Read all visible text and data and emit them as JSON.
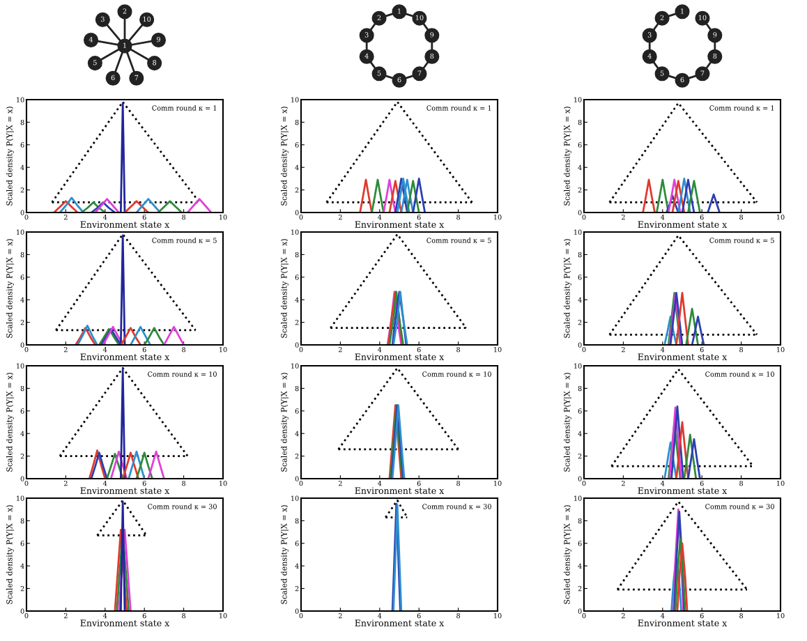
{
  "chart_data": [
    {
      "type": "other",
      "annotations": [
        "1",
        "2",
        "10",
        "9",
        "8",
        "7",
        "6",
        "5",
        "4",
        "3"
      ]
    },
    {
      "type": "other",
      "annotations": [
        "1",
        "10",
        "9",
        "8",
        "7",
        "6",
        "5",
        "4",
        "3",
        "2"
      ]
    },
    {
      "type": "other",
      "annotations": [
        "1",
        "10",
        "9",
        "8",
        "7",
        "6",
        "5",
        "4",
        "3",
        "2"
      ]
    },
    {
      "type": "line",
      "xlabel": "Environment state x",
      "ylabel": "Scaled density P(Y|X = x)",
      "annotations": [
        "Comm round κ = 1"
      ],
      "xlim": [
        0,
        10
      ],
      "ylim": [
        0,
        10
      ],
      "xticks": [
        0,
        2,
        4,
        6,
        8,
        10
      ],
      "yticks": [
        0,
        2,
        4,
        6,
        8,
        10
      ],
      "series": [
        {
          "color": "#000000",
          "line_style": "dotted",
          "x": [
            1.3,
            4.9,
            8.8
          ],
          "values": [
            0.9,
            9.8,
            0.9
          ]
        },
        {
          "color": "#000000",
          "line_style": "dotted",
          "x": [
            1.3,
            8.8
          ],
          "values": [
            0.9,
            0.9
          ]
        },
        {
          "color": "#e03a2e",
          "x": [
            1.4,
            1.7,
            2.0,
            2.3,
            2.6
          ],
          "values": [
            0,
            0.5,
            1.0,
            0.5,
            0
          ]
        },
        {
          "color": "#2e8fd0",
          "x": [
            1.7,
            2.0,
            2.3,
            2.6,
            2.9
          ],
          "values": [
            0,
            0.6,
            1.3,
            0.6,
            0
          ]
        },
        {
          "color": "#2e8b3a",
          "x": [
            2.8,
            3.1,
            3.4,
            3.7,
            4.0
          ],
          "values": [
            0,
            0.4,
            0.9,
            0.4,
            0
          ]
        },
        {
          "color": "#2c3fb0",
          "x": [
            3.3,
            3.6,
            3.9,
            4.2,
            4.5
          ],
          "values": [
            0,
            0.4,
            0.9,
            0.4,
            0
          ]
        },
        {
          "color": "#e040d8",
          "x": [
            3.5,
            3.8,
            4.1,
            4.4,
            4.7
          ],
          "values": [
            0,
            0.6,
            1.2,
            0.6,
            0
          ]
        },
        {
          "color": "#22259a",
          "x": [
            4.8,
            4.85,
            4.9,
            4.95,
            5.0
          ],
          "values": [
            0,
            4.8,
            9.7,
            4.8,
            0
          ]
        },
        {
          "color": "#e03a2e",
          "x": [
            5.0,
            5.3,
            5.6,
            5.9,
            6.2
          ],
          "values": [
            0,
            0.5,
            1.0,
            0.5,
            0
          ]
        },
        {
          "color": "#2e8fd0",
          "x": [
            5.6,
            5.9,
            6.2,
            6.5,
            6.8
          ],
          "values": [
            0,
            0.6,
            1.2,
            0.6,
            0
          ]
        },
        {
          "color": "#2e8b3a",
          "x": [
            6.7,
            7.0,
            7.3,
            7.6,
            7.9
          ],
          "values": [
            0,
            0.5,
            1.0,
            0.5,
            0
          ]
        },
        {
          "color": "#e040d8",
          "x": [
            8.2,
            8.5,
            8.8,
            9.1,
            9.4
          ],
          "values": [
            0,
            0.6,
            1.2,
            0.6,
            0
          ]
        }
      ]
    },
    {
      "type": "line",
      "xlabel": "Environment state x",
      "ylabel": "Scaled density P(Y|X = x)",
      "annotations": [
        "Comm round κ = 1"
      ],
      "xlim": [
        0,
        10
      ],
      "ylim": [
        0,
        10
      ],
      "xticks": [
        0,
        2,
        4,
        6,
        8,
        10
      ],
      "yticks": [
        0,
        2,
        4,
        6,
        8,
        10
      ],
      "series": [
        {
          "color": "#000000",
          "line_style": "dotted",
          "x": [
            1.3,
            4.9,
            8.7
          ],
          "values": [
            0.9,
            9.8,
            0.9
          ]
        },
        {
          "color": "#000000",
          "line_style": "dotted",
          "x": [
            1.3,
            8.7
          ],
          "values": [
            0.9,
            0.9
          ]
        },
        {
          "color": "#e03a2e",
          "x": [
            3.0,
            3.15,
            3.3,
            3.45,
            3.6
          ],
          "values": [
            0,
            1.4,
            2.9,
            1.4,
            0
          ]
        },
        {
          "color": "#2e8b3a",
          "x": [
            3.6,
            3.75,
            3.9,
            4.05,
            4.2
          ],
          "values": [
            0,
            1.4,
            2.9,
            1.4,
            0
          ]
        },
        {
          "color": "#e040d8",
          "x": [
            4.2,
            4.35,
            4.5,
            4.65,
            4.8
          ],
          "values": [
            0,
            1.4,
            2.9,
            1.4,
            0
          ]
        },
        {
          "color": "#e03a2e",
          "x": [
            4.5,
            4.65,
            4.8,
            4.95,
            5.1
          ],
          "values": [
            0,
            1.4,
            2.8,
            1.4,
            0
          ]
        },
        {
          "color": "#2c3fb0",
          "x": [
            4.8,
            4.95,
            5.1,
            5.25,
            5.4
          ],
          "values": [
            0,
            1.5,
            3.0,
            1.5,
            0
          ]
        },
        {
          "color": "#2e8fd0",
          "x": [
            4.9,
            5.05,
            5.2,
            5.35,
            5.5
          ],
          "values": [
            0,
            1.5,
            3.0,
            1.5,
            0
          ]
        },
        {
          "color": "#2e8fd0",
          "x": [
            5.1,
            5.25,
            5.4,
            5.55,
            5.7
          ],
          "values": [
            0,
            1.4,
            2.9,
            1.4,
            0
          ]
        },
        {
          "color": "#2e8b3a",
          "x": [
            5.4,
            5.55,
            5.7,
            5.85,
            6.0
          ],
          "values": [
            0,
            1.4,
            2.8,
            1.4,
            0
          ]
        },
        {
          "color": "#2c3fb0",
          "x": [
            5.7,
            5.85,
            6.0,
            6.15,
            6.3
          ],
          "values": [
            0,
            1.5,
            3.0,
            1.5,
            0
          ]
        }
      ]
    },
    {
      "type": "line",
      "xlabel": "Environment state x",
      "ylabel": "Scaled density P(Y|X = x)",
      "annotations": [
        "Comm round κ = 1"
      ],
      "xlim": [
        0,
        10
      ],
      "ylim": [
        0,
        10
      ],
      "xticks": [
        0,
        2,
        4,
        6,
        8,
        10
      ],
      "yticks": [
        0,
        2,
        4,
        6,
        8,
        10
      ],
      "series": [
        {
          "color": "#000000",
          "line_style": "dotted",
          "x": [
            1.3,
            4.8,
            8.8
          ],
          "values": [
            0.9,
            9.7,
            0.9
          ]
        },
        {
          "color": "#000000",
          "line_style": "dotted",
          "x": [
            1.3,
            8.8
          ],
          "values": [
            0.9,
            0.9
          ]
        },
        {
          "color": "#e03a2e",
          "x": [
            3.0,
            3.15,
            3.3,
            3.45,
            3.6
          ],
          "values": [
            0,
            1.4,
            2.9,
            1.4,
            0
          ]
        },
        {
          "color": "#2e8b3a",
          "x": [
            3.7,
            3.85,
            4.0,
            4.15,
            4.3
          ],
          "values": [
            0,
            1.4,
            2.9,
            1.4,
            0
          ]
        },
        {
          "color": "#2c3fb0",
          "x": [
            4.2,
            4.35,
            4.5,
            4.65,
            4.8
          ],
          "values": [
            0,
            0.7,
            1.5,
            0.7,
            0
          ]
        },
        {
          "color": "#e040d8",
          "x": [
            4.3,
            4.45,
            4.6,
            4.75,
            4.9
          ],
          "values": [
            0,
            1.4,
            2.9,
            1.4,
            0
          ]
        },
        {
          "color": "#e03a2e",
          "x": [
            4.5,
            4.65,
            4.8,
            4.95,
            5.1
          ],
          "values": [
            0,
            1.4,
            2.8,
            1.4,
            0
          ]
        },
        {
          "color": "#2e8fd0",
          "x": [
            4.8,
            4.95,
            5.1,
            5.25,
            5.4
          ],
          "values": [
            0,
            1.5,
            3.0,
            1.5,
            0
          ]
        },
        {
          "color": "#2c3fb0",
          "x": [
            5.0,
            5.15,
            5.3,
            5.45,
            5.6
          ],
          "values": [
            0,
            1.4,
            2.9,
            1.4,
            0
          ]
        },
        {
          "color": "#2e8b3a",
          "x": [
            5.3,
            5.45,
            5.6,
            5.75,
            5.9
          ],
          "values": [
            0,
            1.4,
            2.8,
            1.4,
            0
          ]
        },
        {
          "color": "#2c3fb0",
          "x": [
            6.3,
            6.45,
            6.6,
            6.75,
            6.9
          ],
          "values": [
            0,
            0.8,
            1.6,
            0.8,
            0
          ]
        }
      ]
    },
    {
      "type": "line",
      "xlabel": "Environment state x",
      "ylabel": "Scaled density P(Y|X = x)",
      "annotations": [
        "Comm round κ = 5"
      ],
      "xlim": [
        0,
        10
      ],
      "ylim": [
        0,
        10
      ],
      "xticks": [
        0,
        2,
        4,
        6,
        8,
        10
      ],
      "yticks": [
        0,
        2,
        4,
        6,
        8,
        10
      ],
      "series": [
        {
          "color": "#000000",
          "line_style": "dotted",
          "x": [
            1.5,
            4.9,
            8.6
          ],
          "values": [
            1.3,
            9.8,
            1.3
          ]
        },
        {
          "color": "#000000",
          "line_style": "dotted",
          "x": [
            1.5,
            8.6
          ],
          "values": [
            1.3,
            1.3
          ]
        },
        {
          "color": "#e03a2e",
          "x": [
            2.5,
            2.75,
            3.0,
            3.25,
            3.5
          ],
          "values": [
            0,
            0.7,
            1.5,
            0.7,
            0
          ]
        },
        {
          "color": "#2e8fd0",
          "x": [
            2.6,
            2.85,
            3.1,
            3.35,
            3.6
          ],
          "values": [
            0,
            0.8,
            1.7,
            0.8,
            0
          ]
        },
        {
          "color": "#2e8b3a",
          "x": [
            3.7,
            3.95,
            4.2,
            4.45,
            4.7
          ],
          "values": [
            0,
            0.7,
            1.4,
            0.7,
            0
          ]
        },
        {
          "color": "#2c3fb0",
          "x": [
            3.8,
            4.05,
            4.3,
            4.55,
            4.8
          ],
          "values": [
            0,
            0.7,
            1.4,
            0.7,
            0
          ]
        },
        {
          "color": "#e040d8",
          "x": [
            3.9,
            4.15,
            4.4,
            4.65,
            4.9
          ],
          "values": [
            0,
            0.8,
            1.6,
            0.8,
            0
          ]
        },
        {
          "color": "#22259a",
          "x": [
            4.8,
            4.85,
            4.9,
            4.95,
            5.0
          ],
          "values": [
            0,
            4.8,
            9.7,
            4.8,
            0
          ]
        },
        {
          "color": "#e03a2e",
          "x": [
            4.8,
            5.05,
            5.3,
            5.55,
            5.8
          ],
          "values": [
            0,
            0.7,
            1.5,
            0.7,
            0
          ]
        },
        {
          "color": "#2e8fd0",
          "x": [
            5.3,
            5.55,
            5.8,
            6.05,
            6.3
          ],
          "values": [
            0,
            0.8,
            1.6,
            0.8,
            0
          ]
        },
        {
          "color": "#2e8b3a",
          "x": [
            6.0,
            6.25,
            6.5,
            6.75,
            7.0
          ],
          "values": [
            0,
            0.7,
            1.5,
            0.7,
            0
          ]
        },
        {
          "color": "#e040d8",
          "x": [
            7.0,
            7.25,
            7.5,
            7.75,
            8.0
          ],
          "values": [
            0,
            0.8,
            1.6,
            0.8,
            0
          ]
        }
      ]
    },
    {
      "type": "line",
      "xlabel": "Environment state x",
      "ylabel": "Scaled density P(Y|X = x)",
      "annotations": [
        "Comm round κ = 5"
      ],
      "xlim": [
        0,
        10
      ],
      "ylim": [
        0,
        10
      ],
      "xticks": [
        0,
        2,
        4,
        6,
        8,
        10
      ],
      "yticks": [
        0,
        2,
        4,
        6,
        8,
        10
      ],
      "series": [
        {
          "color": "#000000",
          "line_style": "dotted",
          "x": [
            1.5,
            4.9,
            8.4
          ],
          "values": [
            1.5,
            9.8,
            1.5
          ]
        },
        {
          "color": "#000000",
          "line_style": "dotted",
          "x": [
            1.5,
            8.4
          ],
          "values": [
            1.5,
            1.5
          ]
        },
        {
          "color": "#e040d8",
          "x": [
            4.4,
            4.6,
            4.75,
            4.9,
            5.1
          ],
          "values": [
            0,
            2.3,
            4.7,
            2.3,
            0
          ]
        },
        {
          "color": "#e03a2e",
          "x": [
            4.45,
            4.6,
            4.8,
            5.0,
            5.15
          ],
          "values": [
            0,
            2.3,
            4.7,
            2.3,
            0
          ]
        },
        {
          "color": "#2e8b3a",
          "x": [
            4.5,
            4.7,
            4.85,
            5.0,
            5.2
          ],
          "values": [
            0,
            2.3,
            4.7,
            2.3,
            0
          ]
        },
        {
          "color": "#2c3fb0",
          "x": [
            4.65,
            4.8,
            5.0,
            5.2,
            5.35
          ],
          "values": [
            0,
            2.3,
            4.7,
            2.3,
            0
          ]
        },
        {
          "color": "#2e8fd0",
          "x": [
            4.7,
            4.9,
            5.05,
            5.2,
            5.4
          ],
          "values": [
            0,
            2.3,
            4.7,
            2.3,
            0
          ]
        }
      ]
    },
    {
      "type": "line",
      "xlabel": "Environment state x",
      "ylabel": "Scaled density P(Y|X = x)",
      "annotations": [
        "Comm round κ = 5"
      ],
      "xlim": [
        0,
        10
      ],
      "ylim": [
        0,
        10
      ],
      "xticks": [
        0,
        2,
        4,
        6,
        8,
        10
      ],
      "yticks": [
        0,
        2,
        4,
        6,
        8,
        10
      ],
      "series": [
        {
          "color": "#000000",
          "line_style": "dotted",
          "x": [
            1.3,
            4.8,
            8.8
          ],
          "values": [
            0.9,
            9.7,
            0.9
          ]
        },
        {
          "color": "#000000",
          "line_style": "dotted",
          "x": [
            1.3,
            8.8
          ],
          "values": [
            0.9,
            0.9
          ]
        },
        {
          "color": "#2e8fd0",
          "x": [
            4.1,
            4.25,
            4.4,
            4.55,
            4.7
          ],
          "values": [
            0,
            1.2,
            2.5,
            1.2,
            0
          ]
        },
        {
          "color": "#2e8b3a",
          "x": [
            4.3,
            4.45,
            4.6,
            4.75,
            4.9
          ],
          "values": [
            0,
            2.3,
            4.6,
            2.3,
            0
          ]
        },
        {
          "color": "#e040d8",
          "x": [
            4.35,
            4.5,
            4.65,
            4.8,
            4.95
          ],
          "values": [
            0,
            2.2,
            4.5,
            2.2,
            0
          ]
        },
        {
          "color": "#2c3fb0",
          "x": [
            4.4,
            4.55,
            4.7,
            4.85,
            5.0
          ],
          "values": [
            0,
            2.3,
            4.6,
            2.3,
            0
          ]
        },
        {
          "color": "#e03a2e",
          "x": [
            4.7,
            4.85,
            5.0,
            5.15,
            5.3
          ],
          "values": [
            0,
            2.3,
            4.6,
            2.3,
            0
          ]
        },
        {
          "color": "#2e8b3a",
          "x": [
            5.2,
            5.35,
            5.5,
            5.65,
            5.8
          ],
          "values": [
            0,
            1.6,
            3.2,
            1.6,
            0
          ]
        },
        {
          "color": "#2c3fb0",
          "x": [
            5.5,
            5.65,
            5.8,
            5.95,
            6.1
          ],
          "values": [
            0,
            1.2,
            2.5,
            1.2,
            0
          ]
        }
      ]
    },
    {
      "type": "line",
      "xlabel": "Environment state x",
      "ylabel": "Scaled density P(Y|X = x)",
      "annotations": [
        "Comm round κ = 10"
      ],
      "xlim": [
        0,
        10
      ],
      "ylim": [
        0,
        10
      ],
      "xticks": [
        0,
        2,
        4,
        6,
        8,
        10
      ],
      "yticks": [
        0,
        2,
        4,
        6,
        8,
        10
      ],
      "series": [
        {
          "color": "#000000",
          "line_style": "dotted",
          "x": [
            1.7,
            4.9,
            8.2
          ],
          "values": [
            2.0,
            9.8,
            2.0
          ]
        },
        {
          "color": "#000000",
          "line_style": "dotted",
          "x": [
            1.7,
            8.2
          ],
          "values": [
            2.0,
            2.0
          ]
        },
        {
          "color": "#e03a2e",
          "x": [
            3.2,
            3.4,
            3.6,
            3.8,
            4.0
          ],
          "values": [
            0,
            1.2,
            2.5,
            1.2,
            0
          ]
        },
        {
          "color": "#2c3fb0",
          "x": [
            3.3,
            3.5,
            3.7,
            3.9,
            4.1
          ],
          "values": [
            0,
            1.1,
            2.3,
            1.1,
            0
          ]
        },
        {
          "color": "#2e8b3a",
          "x": [
            4.1,
            4.3,
            4.5,
            4.7,
            4.9
          ],
          "values": [
            0,
            1.1,
            2.2,
            1.1,
            0
          ]
        },
        {
          "color": "#e040d8",
          "x": [
            4.3,
            4.5,
            4.7,
            4.9,
            5.1
          ],
          "values": [
            0,
            1.2,
            2.4,
            1.2,
            0
          ]
        },
        {
          "color": "#22259a",
          "x": [
            4.8,
            4.85,
            4.9,
            4.95,
            5.0
          ],
          "values": [
            0,
            4.8,
            9.7,
            4.8,
            0
          ]
        },
        {
          "color": "#e03a2e",
          "x": [
            4.9,
            5.1,
            5.3,
            5.5,
            5.7
          ],
          "values": [
            0,
            1.1,
            2.3,
            1.1,
            0
          ]
        },
        {
          "color": "#2e8fd0",
          "x": [
            5.2,
            5.4,
            5.6,
            5.8,
            6.0
          ],
          "values": [
            0,
            1.2,
            2.4,
            1.2,
            0
          ]
        },
        {
          "color": "#2e8b3a",
          "x": [
            5.6,
            5.8,
            6.0,
            6.2,
            6.4
          ],
          "values": [
            0,
            1.1,
            2.3,
            1.1,
            0
          ]
        },
        {
          "color": "#e040d8",
          "x": [
            6.2,
            6.4,
            6.6,
            6.8,
            7.0
          ],
          "values": [
            0,
            1.2,
            2.4,
            1.2,
            0
          ]
        }
      ]
    },
    {
      "type": "line",
      "xlabel": "Environment state x",
      "ylabel": "Scaled density P(Y|X = x)",
      "annotations": [
        "Comm round κ = 10"
      ],
      "xlim": [
        0,
        10
      ],
      "ylim": [
        0,
        10
      ],
      "xticks": [
        0,
        2,
        4,
        6,
        8,
        10
      ],
      "yticks": [
        0,
        2,
        4,
        6,
        8,
        10
      ],
      "series": [
        {
          "color": "#000000",
          "line_style": "dotted",
          "x": [
            1.9,
            4.9,
            8.0
          ],
          "values": [
            2.6,
            9.8,
            2.6
          ]
        },
        {
          "color": "#000000",
          "line_style": "dotted",
          "x": [
            1.9,
            8.0
          ],
          "values": [
            2.6,
            2.6
          ]
        },
        {
          "color": "#e03a2e",
          "x": [
            4.5,
            4.65,
            4.8,
            4.95,
            5.1
          ],
          "values": [
            0,
            3.2,
            6.5,
            3.2,
            0
          ]
        },
        {
          "color": "#2e8b3a",
          "x": [
            4.55,
            4.7,
            4.85,
            5.0,
            5.15
          ],
          "values": [
            0,
            3.2,
            6.5,
            3.2,
            0
          ]
        },
        {
          "color": "#2c3fb0",
          "x": [
            4.6,
            4.75,
            4.9,
            5.05,
            5.2
          ],
          "values": [
            0,
            3.2,
            6.5,
            3.2,
            0
          ]
        },
        {
          "color": "#2e8fd0",
          "x": [
            4.65,
            4.8,
            4.95,
            5.1,
            5.25
          ],
          "values": [
            0,
            3.2,
            6.5,
            3.2,
            0
          ]
        }
      ]
    },
    {
      "type": "line",
      "xlabel": "Environment state x",
      "ylabel": "Scaled density P(Y|X = x)",
      "annotations": [
        "Comm round κ = 10"
      ],
      "xlim": [
        0,
        10
      ],
      "ylim": [
        0,
        10
      ],
      "xticks": [
        0,
        2,
        4,
        6,
        8,
        10
      ],
      "yticks": [
        0,
        2,
        4,
        6,
        8,
        10
      ],
      "series": [
        {
          "color": "#000000",
          "line_style": "dotted",
          "x": [
            1.4,
            4.8,
            8.6
          ],
          "values": [
            1.1,
            9.7,
            1.1
          ]
        },
        {
          "color": "#000000",
          "line_style": "dotted",
          "x": [
            1.4,
            8.6
          ],
          "values": [
            1.1,
            1.1
          ]
        },
        {
          "color": "#2e8fd0",
          "x": [
            4.1,
            4.25,
            4.4,
            4.55,
            4.7
          ],
          "values": [
            0,
            1.6,
            3.2,
            1.6,
            0
          ]
        },
        {
          "color": "#2e8b3a",
          "x": [
            4.3,
            4.45,
            4.6,
            4.75,
            4.9
          ],
          "values": [
            0,
            2.4,
            4.9,
            2.4,
            0
          ]
        },
        {
          "color": "#e040d8",
          "x": [
            4.35,
            4.5,
            4.65,
            4.8,
            4.95
          ],
          "values": [
            0,
            3.1,
            6.3,
            3.1,
            0
          ]
        },
        {
          "color": "#2c3fb0",
          "x": [
            4.45,
            4.6,
            4.75,
            4.9,
            5.05
          ],
          "values": [
            0,
            3.2,
            6.4,
            3.2,
            0
          ]
        },
        {
          "color": "#e03a2e",
          "x": [
            4.7,
            4.85,
            5.0,
            5.15,
            5.3
          ],
          "values": [
            0,
            2.5,
            5.0,
            2.5,
            0
          ]
        },
        {
          "color": "#2e8b3a",
          "x": [
            5.1,
            5.25,
            5.4,
            5.55,
            5.7
          ],
          "values": [
            0,
            1.9,
            3.9,
            1.9,
            0
          ]
        },
        {
          "color": "#2c3fb0",
          "x": [
            5.3,
            5.45,
            5.6,
            5.75,
            5.9
          ],
          "values": [
            0,
            1.7,
            3.5,
            1.7,
            0
          ]
        }
      ]
    },
    {
      "type": "line",
      "xlabel": "Environment state x",
      "ylabel": "Scaled density P(Y|X = x)",
      "annotations": [
        "Comm round κ = 30"
      ],
      "xlim": [
        0,
        10
      ],
      "ylim": [
        0,
        10
      ],
      "xticks": [
        0,
        2,
        4,
        6,
        8,
        10
      ],
      "yticks": [
        0,
        2,
        4,
        6,
        8,
        10
      ],
      "series": [
        {
          "color": "#000000",
          "line_style": "dotted",
          "x": [
            3.6,
            4.9,
            6.1
          ],
          "values": [
            6.7,
            9.8,
            6.7
          ]
        },
        {
          "color": "#000000",
          "line_style": "dotted",
          "x": [
            3.6,
            6.1
          ],
          "values": [
            6.7,
            6.7
          ]
        },
        {
          "color": "#e03a2e",
          "x": [
            4.5,
            4.65,
            4.8,
            4.95,
            5.1
          ],
          "values": [
            0,
            3.6,
            7.2,
            3.6,
            0
          ]
        },
        {
          "color": "#2e8b3a",
          "x": [
            4.6,
            4.75,
            4.9,
            5.05,
            5.2
          ],
          "values": [
            0,
            3.6,
            7.2,
            3.6,
            0
          ]
        },
        {
          "color": "#e040d8",
          "x": [
            4.7,
            4.85,
            5.0,
            5.15,
            5.3
          ],
          "values": [
            0,
            3.6,
            7.2,
            3.6,
            0
          ]
        },
        {
          "color": "#22259a",
          "x": [
            4.8,
            4.85,
            4.9,
            4.95,
            5.0
          ],
          "values": [
            0,
            4.8,
            9.7,
            4.8,
            0
          ]
        }
      ]
    },
    {
      "type": "line",
      "xlabel": "Environment state x",
      "ylabel": "Scaled density P(Y|X = x)",
      "annotations": [
        "Comm round κ = 30"
      ],
      "xlim": [
        0,
        10
      ],
      "ylim": [
        0,
        10
      ],
      "xticks": [
        0,
        2,
        4,
        6,
        8,
        10
      ],
      "yticks": [
        0,
        2,
        4,
        6,
        8,
        10
      ],
      "series": [
        {
          "color": "#000000",
          "line_style": "dotted",
          "x": [
            4.3,
            4.9,
            5.4
          ],
          "values": [
            8.3,
            9.8,
            8.3
          ]
        },
        {
          "color": "#000000",
          "line_style": "dotted",
          "x": [
            4.3,
            5.4
          ],
          "values": [
            8.3,
            8.3
          ]
        },
        {
          "color": "#2c3fb0",
          "x": [
            4.65,
            4.75,
            4.85,
            4.95,
            5.05
          ],
          "values": [
            0,
            4.7,
            9.5,
            4.7,
            0
          ]
        },
        {
          "color": "#2e8fd0",
          "x": [
            4.7,
            4.8,
            4.9,
            5.0,
            5.1
          ],
          "values": [
            0,
            4.7,
            9.4,
            4.7,
            0
          ]
        }
      ]
    },
    {
      "type": "line",
      "xlabel": "Environment state x",
      "ylabel": "Scaled density P(Y|X = x)",
      "annotations": [
        "Comm round κ = 30"
      ],
      "xlim": [
        0,
        10
      ],
      "ylim": [
        0,
        10
      ],
      "xticks": [
        0,
        2,
        4,
        6,
        8,
        10
      ],
      "yticks": [
        0,
        2,
        4,
        6,
        8,
        10
      ],
      "series": [
        {
          "color": "#000000",
          "line_style": "dotted",
          "x": [
            1.7,
            4.8,
            8.3
          ],
          "values": [
            1.9,
            9.7,
            1.9
          ]
        },
        {
          "color": "#000000",
          "line_style": "dotted",
          "x": [
            1.7,
            8.3
          ],
          "values": [
            1.9,
            1.9
          ]
        },
        {
          "color": "#2e8fd0",
          "x": [
            4.45,
            4.55,
            4.7,
            4.85,
            4.95
          ],
          "values": [
            0,
            2.5,
            5.0,
            2.5,
            0
          ]
        },
        {
          "color": "#e040d8",
          "x": [
            4.55,
            4.65,
            4.8,
            4.95,
            5.05
          ],
          "values": [
            0,
            4.5,
            9.0,
            4.5,
            0
          ]
        },
        {
          "color": "#2c3fb0",
          "x": [
            4.6,
            4.7,
            4.85,
            5.0,
            5.1
          ],
          "values": [
            0,
            4.4,
            8.8,
            4.4,
            0
          ]
        },
        {
          "color": "#2e8b3a",
          "x": [
            4.65,
            4.75,
            4.9,
            5.05,
            5.15
          ],
          "values": [
            0,
            3.2,
            6.4,
            3.2,
            0
          ]
        },
        {
          "color": "#e03a2e",
          "x": [
            4.75,
            4.85,
            5.0,
            5.15,
            5.25
          ],
          "values": [
            0,
            3.0,
            6.0,
            3.0,
            0
          ]
        }
      ]
    }
  ]
}
